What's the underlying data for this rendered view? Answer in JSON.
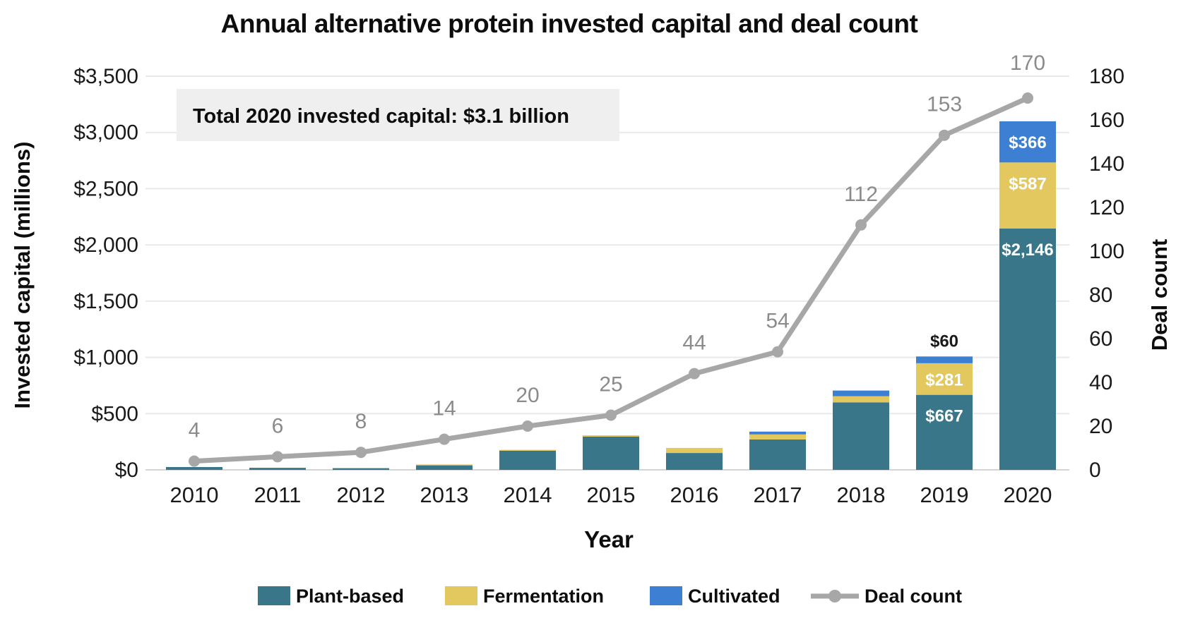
{
  "title": "Annual alternative protein invested capital and deal count",
  "annotation": "Total 2020 invested capital: $3.1 billion",
  "axes": {
    "left_title": "Invested capital (millions)",
    "right_title": "Deal count",
    "x_title": "Year",
    "left_ticks": [
      "$0",
      "$500",
      "$1,000",
      "$1,500",
      "$2,000",
      "$2,500",
      "$3,000",
      "$3,500"
    ],
    "right_ticks": [
      "0",
      "20",
      "40",
      "60",
      "80",
      "100",
      "120",
      "140",
      "160",
      "180"
    ]
  },
  "legend": [
    {
      "label": "Plant-based",
      "color": "#3a7689",
      "type": "swatch"
    },
    {
      "label": "Fermentation",
      "color": "#e2c85e",
      "type": "swatch"
    },
    {
      "label": "Cultivated",
      "color": "#3c7fd3",
      "type": "swatch"
    },
    {
      "label": "Deal count",
      "color": "#a7a7a7",
      "type": "line"
    }
  ],
  "colors": {
    "plant": "#3a7689",
    "fermentation": "#e2c85e",
    "cultivated": "#3c7fd3",
    "deal_line": "#a7a7a7",
    "deal_label": "#8b8b8b",
    "gridline": "#e9e9e9",
    "baseline": "#d5d5d5",
    "annotation_bg": "#efefef"
  },
  "chart_data": {
    "type": "bar",
    "subtype": "stacked-bars-with-line-overlay",
    "categories": [
      "2010",
      "2011",
      "2012",
      "2013",
      "2014",
      "2015",
      "2016",
      "2017",
      "2018",
      "2019",
      "2020"
    ],
    "series": [
      {
        "name": "Plant-based",
        "role": "bar",
        "values": [
          25,
          18,
          15,
          40,
          170,
          295,
          150,
          270,
          600,
          667,
          2146
        ],
        "labels": [
          null,
          null,
          null,
          null,
          null,
          null,
          null,
          null,
          null,
          "$667",
          "$2,146"
        ]
      },
      {
        "name": "Fermentation",
        "role": "bar",
        "values": [
          0,
          0,
          0,
          8,
          8,
          12,
          45,
          45,
          55,
          281,
          587
        ],
        "labels": [
          null,
          null,
          null,
          null,
          null,
          null,
          null,
          null,
          null,
          "$281",
          "$587"
        ]
      },
      {
        "name": "Cultivated",
        "role": "bar",
        "values": [
          0,
          0,
          0,
          0,
          0,
          0,
          0,
          25,
          50,
          60,
          366
        ],
        "labels": [
          null,
          null,
          null,
          null,
          null,
          null,
          null,
          null,
          null,
          "$60",
          "$366"
        ],
        "label_outside": [
          false,
          false,
          false,
          false,
          false,
          false,
          false,
          false,
          false,
          true,
          false
        ]
      },
      {
        "name": "Deal count",
        "role": "line",
        "values": [
          4,
          6,
          8,
          14,
          20,
          25,
          44,
          54,
          112,
          153,
          170
        ]
      }
    ],
    "title": "Annual alternative protein invested capital and deal count",
    "xlabel": "Year",
    "ylabel_left": "Invested capital (millions)",
    "ylabel_right": "Deal count",
    "ylim_left": [
      0,
      3500
    ],
    "ylim_right": [
      0,
      180
    ],
    "grid": "horizontal",
    "legend_position": "bottom",
    "annotation": "Total 2020 invested capital: $3.1 billion"
  }
}
